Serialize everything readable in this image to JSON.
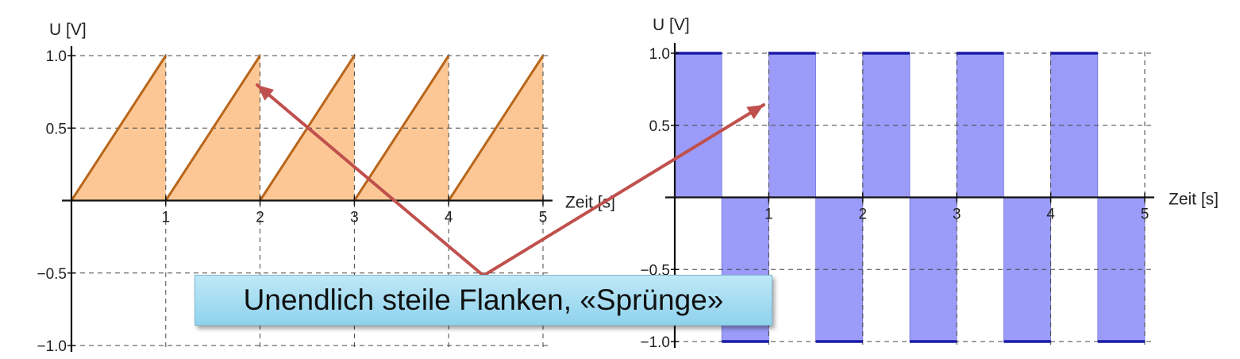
{
  "chart_data": [
    {
      "type": "area",
      "name": "sawtooth",
      "ylabel": "U [V]",
      "xlabel": "Zeit [s]",
      "xlim": [
        0,
        5
      ],
      "ylim": [
        -1.0,
        1.0
      ],
      "x_ticks": [
        "1",
        "2",
        "3",
        "4",
        "5"
      ],
      "y_ticks": [
        "1.0",
        "0.5",
        "−0.5",
        "−1.0"
      ],
      "grid": true,
      "line_color": "#b8661c",
      "fill_color": "#fcc794",
      "x": [
        0,
        1,
        1,
        2,
        2,
        3,
        3,
        4,
        4,
        5
      ],
      "y": [
        0,
        1,
        0,
        1,
        0,
        1,
        0,
        1,
        0,
        1
      ]
    },
    {
      "type": "area",
      "name": "square",
      "ylabel": "U [V]",
      "xlabel": "Zeit [s]",
      "xlim": [
        0,
        5
      ],
      "ylim": [
        -1.0,
        1.0
      ],
      "x_ticks": [
        "1",
        "2",
        "3",
        "4",
        "5"
      ],
      "y_ticks": [
        "1.0",
        "0.5",
        "−0.5",
        "−1.0"
      ],
      "grid": true,
      "line_color": "#1a1aa8",
      "fill_color": "#9b9bfa",
      "segments": [
        {
          "x0": 0.0,
          "x1": 0.5,
          "y": 1
        },
        {
          "x0": 0.5,
          "x1": 1.0,
          "y": -1
        },
        {
          "x0": 1.0,
          "x1": 1.5,
          "y": 1
        },
        {
          "x0": 1.5,
          "x1": 2.0,
          "y": -1
        },
        {
          "x0": 2.0,
          "x1": 2.5,
          "y": 1
        },
        {
          "x0": 2.5,
          "x1": 3.0,
          "y": -1
        },
        {
          "x0": 3.0,
          "x1": 3.5,
          "y": 1
        },
        {
          "x0": 3.5,
          "x1": 4.0,
          "y": -1
        },
        {
          "x0": 4.0,
          "x1": 4.5,
          "y": 1
        },
        {
          "x0": 4.5,
          "x1": 5.0,
          "y": -1
        }
      ]
    }
  ],
  "annotation": {
    "text": "Unendlich steile Flanken, «Sprünge»",
    "arrow_color": "#c0504d"
  }
}
